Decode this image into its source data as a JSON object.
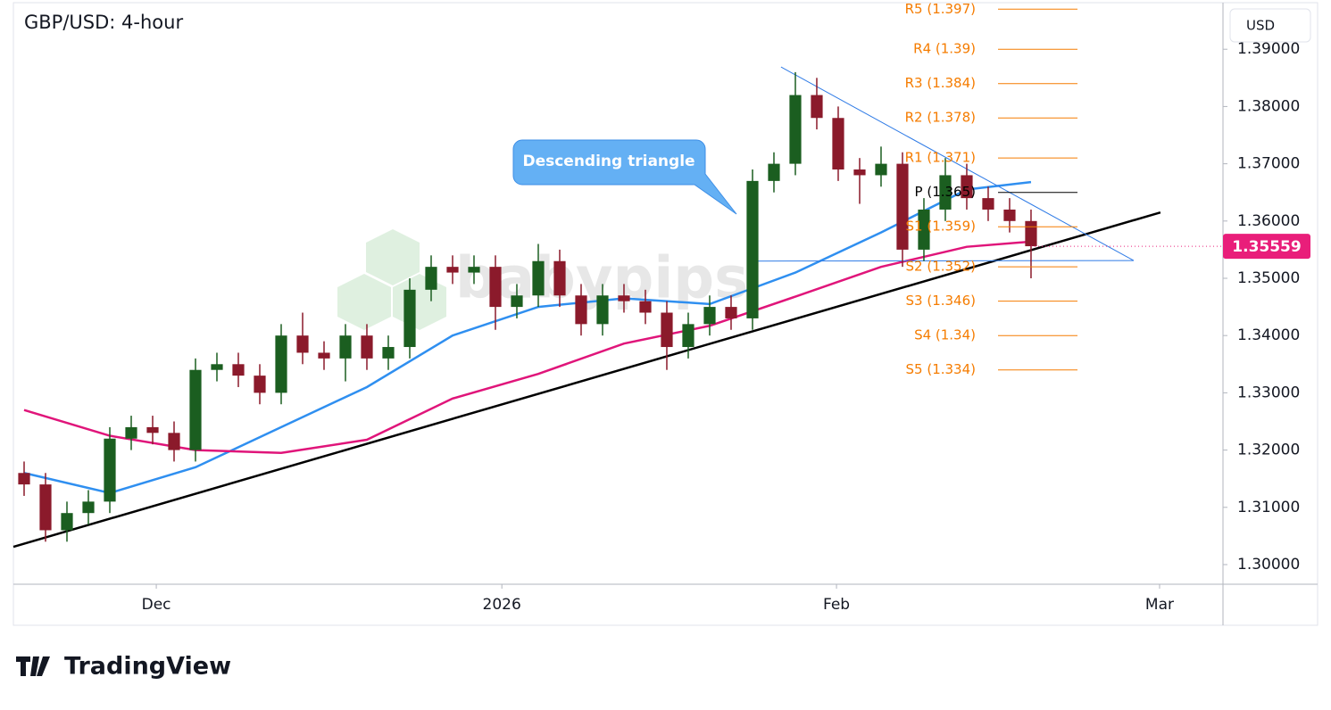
{
  "chart_data": {
    "type": "candlestick",
    "title": "GBP/USD: 4-hour",
    "currency": "USD",
    "watermark": "babypips",
    "brand": "TradingView",
    "annotation": "Descending triangle",
    "last_price": 1.35559,
    "last_price_color": "#e91e7a",
    "up_color": "#1b5e20",
    "down_color": "#8b1a2b",
    "xlim": [
      0,
      56.46
    ],
    "xticks": [
      {
        "value": 6.67,
        "label": "Dec"
      },
      {
        "value": 22.8,
        "label": "2026"
      },
      {
        "value": 38.42,
        "label": "Feb"
      },
      {
        "value": 53.5,
        "label": "Mar"
      }
    ],
    "ylim": [
      1.29657,
      1.3986
    ],
    "yticks": [
      {
        "value": 1.3,
        "label": "1.30000"
      },
      {
        "value": 1.31,
        "label": "1.31000"
      },
      {
        "value": 1.32,
        "label": "1.32000"
      },
      {
        "value": 1.33,
        "label": "1.33000"
      },
      {
        "value": 1.34,
        "label": "1.34000"
      },
      {
        "value": 1.35,
        "label": "1.35000"
      },
      {
        "value": 1.36,
        "label": "1.36000"
      },
      {
        "value": 1.37,
        "label": "1.37000"
      },
      {
        "value": 1.38,
        "label": "1.38000"
      },
      {
        "value": 1.39,
        "label": "1.39000"
      }
    ],
    "open": [
      1.316,
      1.314,
      1.306,
      1.309,
      1.311,
      1.322,
      1.324,
      1.323,
      1.32,
      1.334,
      1.335,
      1.333,
      1.33,
      1.34,
      1.337,
      1.336,
      1.34,
      1.336,
      1.338,
      1.348,
      1.352,
      1.351,
      1.352,
      1.345,
      1.347,
      1.353,
      1.347,
      1.342,
      1.347,
      1.346,
      1.344,
      1.338,
      1.342,
      1.345,
      1.343,
      1.367,
      1.37,
      1.382,
      1.378,
      1.369,
      1.368,
      1.37,
      1.355,
      1.362,
      1.368,
      1.364,
      1.362,
      1.36
    ],
    "high": [
      1.318,
      1.316,
      1.311,
      1.313,
      1.324,
      1.326,
      1.326,
      1.325,
      1.336,
      1.337,
      1.337,
      1.335,
      1.342,
      1.344,
      1.339,
      1.342,
      1.342,
      1.34,
      1.35,
      1.354,
      1.354,
      1.354,
      1.354,
      1.349,
      1.356,
      1.355,
      1.349,
      1.349,
      1.349,
      1.348,
      1.346,
      1.344,
      1.347,
      1.347,
      1.369,
      1.372,
      1.386,
      1.385,
      1.38,
      1.371,
      1.373,
      1.372,
      1.364,
      1.371,
      1.37,
      1.366,
      1.364,
      1.362
    ],
    "low": [
      1.312,
      1.304,
      1.304,
      1.307,
      1.309,
      1.32,
      1.321,
      1.318,
      1.318,
      1.332,
      1.331,
      1.328,
      1.328,
      1.335,
      1.334,
      1.332,
      1.334,
      1.334,
      1.336,
      1.346,
      1.349,
      1.349,
      1.341,
      1.343,
      1.345,
      1.345,
      1.34,
      1.34,
      1.344,
      1.342,
      1.334,
      1.336,
      1.34,
      1.341,
      1.341,
      1.365,
      1.368,
      1.376,
      1.367,
      1.363,
      1.366,
      1.352,
      1.353,
      1.36,
      1.362,
      1.36,
      1.358,
      1.35
    ],
    "close": [
      1.314,
      1.306,
      1.309,
      1.311,
      1.322,
      1.324,
      1.323,
      1.32,
      1.334,
      1.335,
      1.333,
      1.33,
      1.34,
      1.337,
      1.336,
      1.34,
      1.336,
      1.338,
      1.348,
      1.352,
      1.351,
      1.352,
      1.345,
      1.347,
      1.353,
      1.347,
      1.342,
      1.347,
      1.346,
      1.344,
      1.338,
      1.342,
      1.345,
      1.343,
      1.367,
      1.37,
      1.382,
      1.378,
      1.369,
      1.368,
      1.37,
      1.355,
      1.362,
      1.368,
      1.364,
      1.362,
      1.36,
      1.3556
    ],
    "series": [
      {
        "color": "#2f8ff0",
        "x": [
          0.5,
          4.5,
          8.5,
          12.5,
          16.5,
          20.5,
          24.5,
          28.5,
          32.5,
          36.5,
          40.5,
          44.5,
          47.5
        ],
        "values": [
          1.316,
          1.3125,
          1.317,
          1.324,
          1.331,
          1.34,
          1.345,
          1.3465,
          1.3455,
          1.351,
          1.358,
          1.3655,
          1.3668
        ]
      },
      {
        "color": "#e0157a",
        "x": [
          0.5,
          4.5,
          8.5,
          12.5,
          16.5,
          20.5,
          24.5,
          28.5,
          32.5,
          36.5,
          40.5,
          44.5,
          47.5
        ],
        "values": [
          1.327,
          1.3225,
          1.32,
          1.3195,
          1.3218,
          1.329,
          1.3333,
          1.3386,
          1.3417,
          1.3468,
          1.352,
          1.3555,
          1.3564
        ]
      }
    ],
    "lines": [
      {
        "color": "#000000",
        "width": 2.5,
        "x": [
          0,
          53.54
        ],
        "y": [
          1.3031,
          1.3615
        ]
      },
      {
        "color": "#2f7be6",
        "width": 1,
        "x": [
          35.83,
          52.29
        ],
        "y": [
          1.3869,
          1.3531
        ]
      },
      {
        "color": "#2f7be6",
        "width": 1,
        "x": [
          34.29,
          52.29
        ],
        "y": [
          1.353,
          1.3531
        ]
      }
    ],
    "levels": [
      {
        "label": "R5 (1.397)",
        "value": 1.397,
        "color": "#f57c00"
      },
      {
        "label": "R4 (1.39)",
        "value": 1.39,
        "color": "#f57c00"
      },
      {
        "label": "R3 (1.384)",
        "value": 1.384,
        "color": "#f57c00"
      },
      {
        "label": "R2 (1.378)",
        "value": 1.378,
        "color": "#f57c00"
      },
      {
        "label": "R1 (1.371)",
        "value": 1.371,
        "color": "#f57c00"
      },
      {
        "label": "P (1.365)",
        "value": 1.365,
        "color": "#000000"
      },
      {
        "label": "S1 (1.359)",
        "value": 1.359,
        "color": "#f57c00"
      },
      {
        "label": "S2 (1.352)",
        "value": 1.352,
        "color": "#f57c00"
      },
      {
        "label": "S3 (1.346)",
        "value": 1.346,
        "color": "#f57c00"
      },
      {
        "label": "S4 (1.34)",
        "value": 1.34,
        "color": "#f57c00"
      },
      {
        "label": "S5 (1.334)",
        "value": 1.334,
        "color": "#f57c00"
      }
    ]
  }
}
